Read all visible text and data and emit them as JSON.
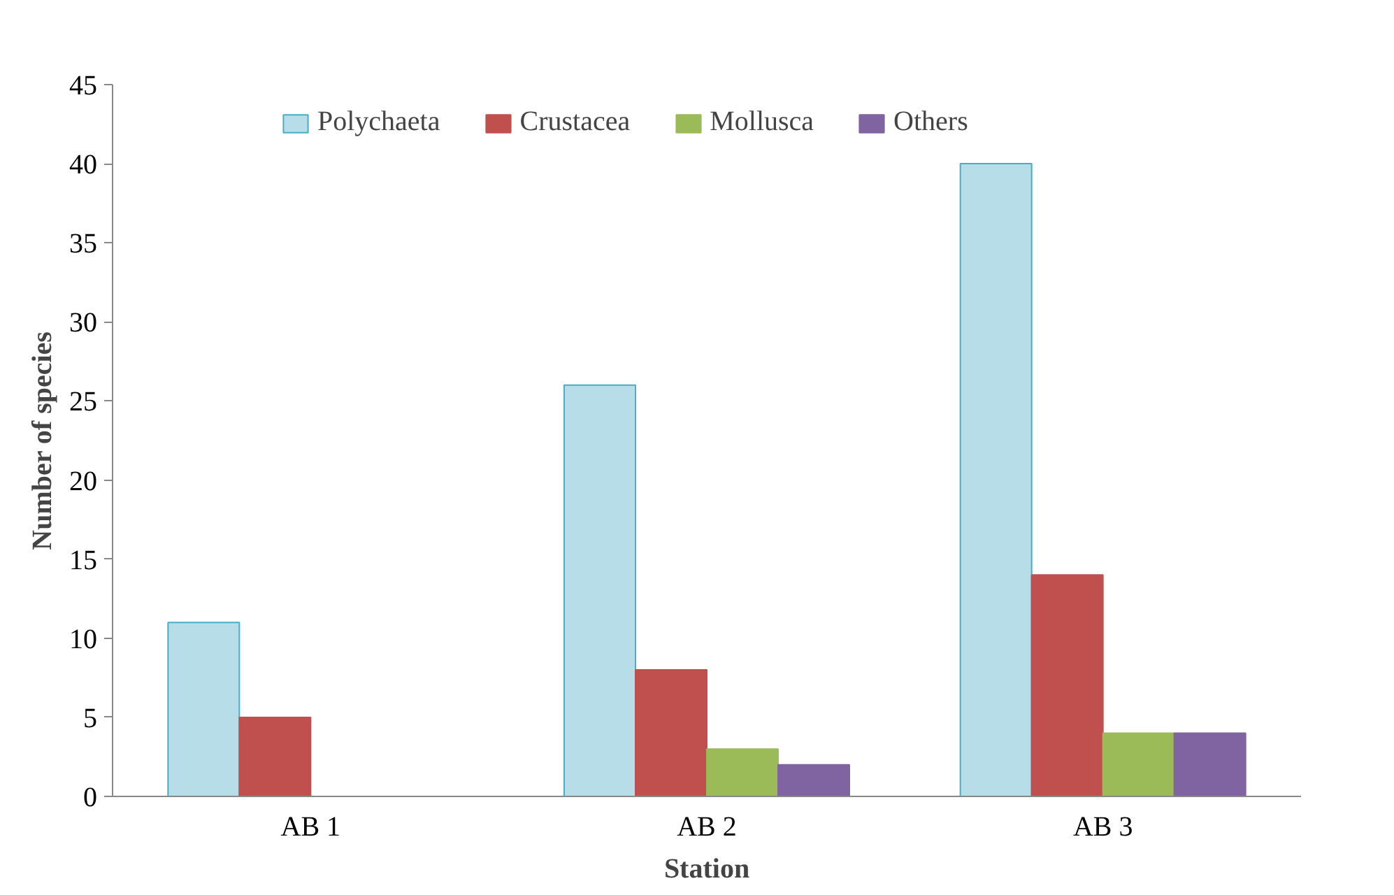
{
  "chart_data": {
    "type": "bar",
    "xlabel": "Station",
    "ylabel": "Number of species",
    "categories": [
      "AB 1",
      "AB 2",
      "AB 3"
    ],
    "series": [
      {
        "name": "Polychaeta",
        "color": "#b7dde8",
        "values": [
          11,
          26,
          40
        ]
      },
      {
        "name": "Crustacea",
        "color": "#c0504d",
        "values": [
          5,
          8,
          14
        ]
      },
      {
        "name": "Mollusca",
        "color": "#9bbb59",
        "values": [
          0,
          3,
          4
        ]
      },
      {
        "name": "Others",
        "color": "#8064a2",
        "values": [
          0,
          2,
          4
        ]
      }
    ],
    "ylim": [
      0,
      45
    ],
    "yticks": [
      0,
      5,
      10,
      15,
      20,
      25,
      30,
      35,
      40,
      45
    ],
    "grid": false,
    "legend": "top"
  }
}
